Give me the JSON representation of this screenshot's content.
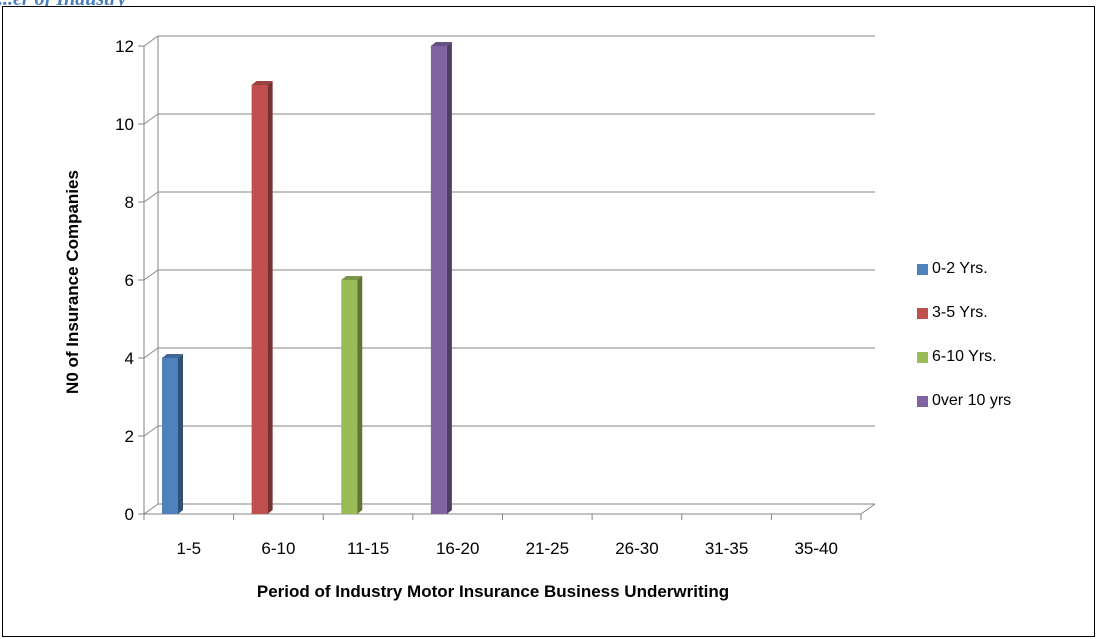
{
  "header": {
    "cut_heading": "...er of Industry"
  },
  "chart_data": {
    "type": "bar",
    "title": "",
    "xlabel": "Period of Industry Motor Insurance Business Underwriting",
    "ylabel": "N0 of Insurance Companies",
    "categories": [
      "1-5",
      "6-10",
      "11-15",
      "16-20",
      "21-25",
      "26-30",
      "31-35",
      "35-40"
    ],
    "ylim": [
      0,
      12
    ],
    "yticks": [
      0,
      2,
      4,
      6,
      8,
      10,
      12
    ],
    "grid": true,
    "legend_position": "right",
    "three_d": true,
    "series": [
      {
        "name": "0-2 Yrs.",
        "color": "#4f81bd",
        "values": [
          4,
          0,
          0,
          0,
          0,
          0,
          0,
          0
        ]
      },
      {
        "name": "3-5 Yrs.",
        "color": "#c0504d",
        "values": [
          0,
          11,
          0,
          0,
          0,
          0,
          0,
          0
        ]
      },
      {
        "name": "6-10 Yrs.",
        "color": "#9bbb59",
        "values": [
          0,
          0,
          6,
          0,
          0,
          0,
          0,
          0
        ]
      },
      {
        "name": "0ver 10 yrs",
        "color": "#8064a2",
        "values": [
          0,
          0,
          0,
          12,
          0,
          0,
          0,
          0
        ]
      }
    ]
  }
}
